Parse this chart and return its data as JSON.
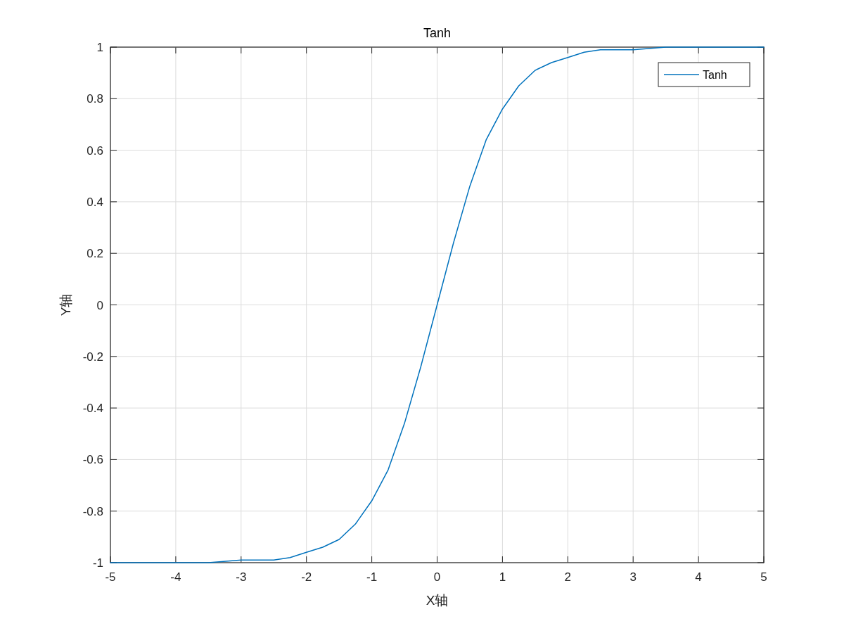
{
  "chart_data": {
    "type": "line",
    "title": "Tanh",
    "xlabel": "X轴",
    "ylabel": "Y轴",
    "x": [
      -5,
      -4,
      -3.5,
      -3,
      -2.5,
      -2.25,
      -2,
      -1.75,
      -1.5,
      -1.25,
      -1,
      -0.75,
      -0.5,
      -0.25,
      0,
      0.25,
      0.5,
      0.75,
      1,
      1.25,
      1.5,
      1.75,
      2,
      2.25,
      2.5,
      3,
      3.5,
      4,
      5
    ],
    "series": [
      {
        "name": "Tanh",
        "color": "#0072bd",
        "values": [
          -1,
          -1,
          -1,
          -0.99,
          -0.99,
          -0.98,
          -0.96,
          -0.94,
          -0.91,
          -0.85,
          -0.76,
          -0.64,
          -0.46,
          -0.24,
          0,
          0.24,
          0.46,
          0.64,
          0.76,
          0.85,
          0.91,
          0.94,
          0.96,
          0.98,
          0.99,
          0.99,
          1,
          1,
          1
        ]
      }
    ],
    "xlim": [
      -5,
      5
    ],
    "ylim": [
      -1,
      1
    ],
    "xticks": [
      -5,
      -4,
      -3,
      -2,
      -1,
      0,
      1,
      2,
      3,
      4,
      5
    ],
    "yticks": [
      -1,
      -0.8,
      -0.6,
      -0.4,
      -0.2,
      0,
      0.2,
      0.4,
      0.6,
      0.8,
      1
    ],
    "grid": true,
    "legend": "top right"
  }
}
